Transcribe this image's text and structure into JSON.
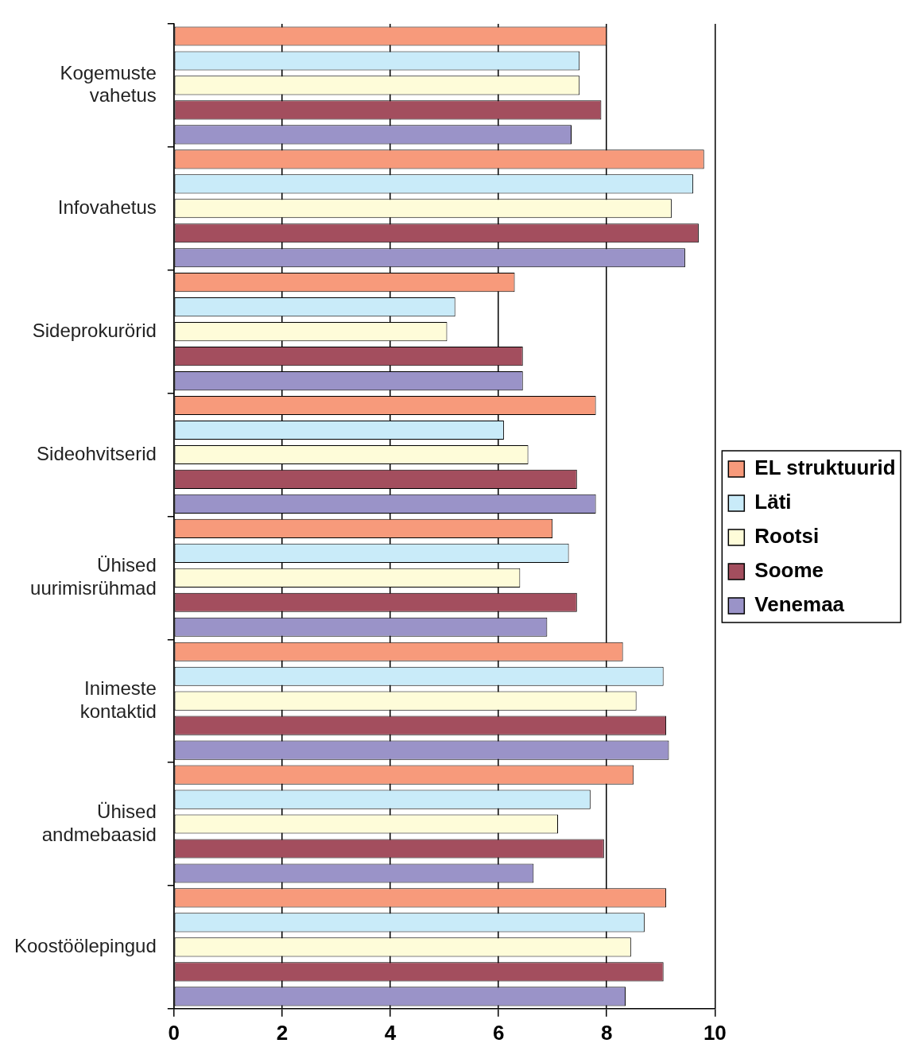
{
  "chart_data": {
    "type": "bar",
    "orientation": "horizontal",
    "categories": [
      "Kogemuste vahetus",
      "Infovahetus",
      "Sideprokurörid",
      "Sideohvitserid",
      "Ühised uurimisrühmad",
      "Inimeste kontaktid",
      "Ühised andmebaasid",
      "Koostöölepingud"
    ],
    "series": [
      {
        "name": "EL struktuurid",
        "color": "#f79a7b",
        "values": [
          8.0,
          9.8,
          6.3,
          7.8,
          7.0,
          8.3,
          8.5,
          9.1
        ]
      },
      {
        "name": "Läti",
        "color": "#c9ebf9",
        "values": [
          7.5,
          9.6,
          5.2,
          6.1,
          7.3,
          9.05,
          7.7,
          8.7
        ]
      },
      {
        "name": "Rootsi",
        "color": "#fefcd9",
        "values": [
          7.5,
          9.2,
          5.05,
          6.55,
          6.4,
          8.55,
          7.1,
          8.45
        ]
      },
      {
        "name": "Soome",
        "color": "#a34e5e",
        "values": [
          7.9,
          9.7,
          6.45,
          7.45,
          7.45,
          9.1,
          7.95,
          9.05
        ]
      },
      {
        "name": "Venemaa",
        "color": "#9a93c8",
        "values": [
          7.35,
          9.45,
          6.45,
          7.8,
          6.9,
          9.15,
          6.65,
          8.35
        ]
      }
    ],
    "xlim": [
      0,
      10
    ],
    "xticks": [
      0,
      2,
      4,
      6,
      8,
      10
    ],
    "grid": "x",
    "legend": "right"
  }
}
